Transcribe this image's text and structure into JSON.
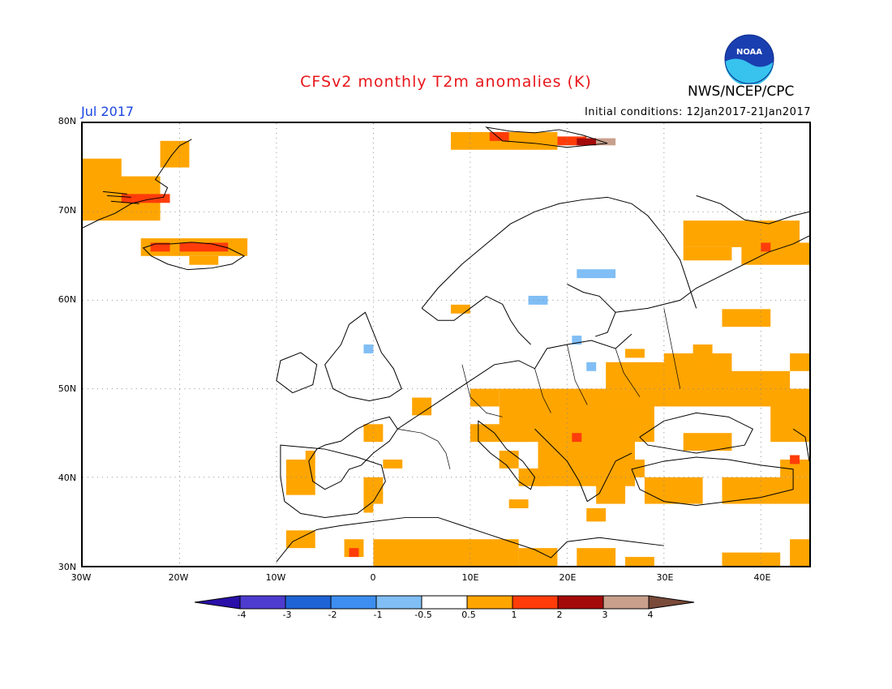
{
  "header": {
    "title": "CFSv2 monthly T2m anomalies (K)",
    "month": "Jul 2017",
    "initial_conditions": "Initial conditions: 12Jan2017-21Jan2017",
    "organization": "NWS/NCEP/CPC",
    "logo_text": "NOAA"
  },
  "axes": {
    "lat_labels": [
      "80N",
      "70N",
      "60N",
      "50N",
      "40N",
      "30N"
    ],
    "lon_labels": [
      "30W",
      "20W",
      "10W",
      "0",
      "10E",
      "20E",
      "30E",
      "40E"
    ]
  },
  "colorbar": {
    "labels": [
      "-4",
      "-3",
      "-2",
      "-1",
      "-0.5",
      "0.5",
      "1",
      "2",
      "3",
      "4"
    ],
    "colors": [
      "#2a0fa8",
      "#4d3ccf",
      "#1f64d6",
      "#3d8ef0",
      "#80bef5",
      "#ffffff",
      "#ffa500",
      "#ff3c0a",
      "#a50a0a",
      "#c8a08c",
      "#7a4a3a"
    ]
  },
  "map": {
    "bounds": {
      "lon_min": -30,
      "lon_max": 45,
      "lat_min": 30,
      "lat_max": 80
    },
    "anomaly_cells": [
      {
        "lon": [
          -30,
          -26
        ],
        "lat": [
          74,
          76
        ],
        "cat": "warm1"
      },
      {
        "lon": [
          -30,
          -22
        ],
        "lat": [
          69,
          74
        ],
        "cat": "warm1"
      },
      {
        "lon": [
          -26,
          -21
        ],
        "lat": [
          71,
          72
        ],
        "cat": "warm2"
      },
      {
        "lon": [
          -22,
          -19
        ],
        "lat": [
          75,
          78
        ],
        "cat": "warm1"
      },
      {
        "lon": [
          -24,
          -13
        ],
        "lat": [
          65,
          67
        ],
        "cat": "warm1"
      },
      {
        "lon": [
          -23,
          -21
        ],
        "lat": [
          65.5,
          66.5
        ],
        "cat": "warm2"
      },
      {
        "lon": [
          -20,
          -15
        ],
        "lat": [
          65.5,
          66.5
        ],
        "cat": "warm2"
      },
      {
        "lon": [
          -19,
          -16
        ],
        "lat": [
          64,
          65
        ],
        "cat": "warm1"
      },
      {
        "lon": [
          8,
          19
        ],
        "lat": [
          77,
          79
        ],
        "cat": "warm1"
      },
      {
        "lon": [
          12,
          14
        ],
        "lat": [
          78,
          79
        ],
        "cat": "warm2"
      },
      {
        "lon": [
          19,
          22
        ],
        "lat": [
          77.5,
          78.5
        ],
        "cat": "warm2"
      },
      {
        "lon": [
          21,
          23
        ],
        "lat": [
          77.5,
          78.3
        ],
        "cat": "warm3"
      },
      {
        "lon": [
          23,
          25
        ],
        "lat": [
          77.5,
          78.3
        ],
        "cat": "warm4"
      },
      {
        "lon": [
          32,
          44
        ],
        "lat": [
          66,
          69
        ],
        "cat": "warm1"
      },
      {
        "lon": [
          32,
          37
        ],
        "lat": [
          64.5,
          66
        ],
        "cat": "warm1"
      },
      {
        "lon": [
          38,
          45
        ],
        "lat": [
          64,
          66.5
        ],
        "cat": "warm1"
      },
      {
        "lon": [
          40,
          41
        ],
        "lat": [
          65.5,
          66.5
        ],
        "cat": "warm2"
      },
      {
        "lon": [
          36,
          41
        ],
        "lat": [
          57,
          59
        ],
        "cat": "warm1"
      },
      {
        "lon": [
          8,
          10
        ],
        "lat": [
          58.5,
          59.5
        ],
        "cat": "warm1"
      },
      {
        "lon": [
          13,
          29
        ],
        "lat": [
          44,
          50
        ],
        "cat": "warm1"
      },
      {
        "lon": [
          24,
          36
        ],
        "lat": [
          48,
          53
        ],
        "cat": "warm1"
      },
      {
        "lon": [
          30,
          37
        ],
        "lat": [
          49,
          54
        ],
        "cat": "warm1"
      },
      {
        "lon": [
          36,
          43
        ],
        "lat": [
          48,
          52
        ],
        "cat": "warm1"
      },
      {
        "lon": [
          41,
          45
        ],
        "lat": [
          44,
          50
        ],
        "cat": "warm1"
      },
      {
        "lon": [
          43,
          45
        ],
        "lat": [
          52,
          54
        ],
        "cat": "warm1"
      },
      {
        "lon": [
          10,
          13
        ],
        "lat": [
          48,
          50
        ],
        "cat": "warm1"
      },
      {
        "lon": [
          4,
          6
        ],
        "lat": [
          47,
          49
        ],
        "cat": "warm1"
      },
      {
        "lon": [
          -1,
          1
        ],
        "lat": [
          44,
          46
        ],
        "cat": "warm1"
      },
      {
        "lon": [
          10,
          16
        ],
        "lat": [
          44,
          46
        ],
        "cat": "warm1"
      },
      {
        "lon": [
          17,
          27
        ],
        "lat": [
          39,
          46
        ],
        "cat": "warm1"
      },
      {
        "lon": [
          20.5,
          21.5
        ],
        "lat": [
          44,
          45
        ],
        "cat": "warm2"
      },
      {
        "lon": [
          15,
          18
        ],
        "lat": [
          39,
          41
        ],
        "cat": "warm1"
      },
      {
        "lon": [
          13,
          15
        ],
        "lat": [
          41,
          43
        ],
        "cat": "warm1"
      },
      {
        "lon": [
          24,
          28
        ],
        "lat": [
          40,
          42
        ],
        "cat": "warm1"
      },
      {
        "lon": [
          23,
          26
        ],
        "lat": [
          37,
          40
        ],
        "cat": "warm1"
      },
      {
        "lon": [
          28,
          34
        ],
        "lat": [
          37,
          40
        ],
        "cat": "warm1"
      },
      {
        "lon": [
          32,
          37
        ],
        "lat": [
          43,
          45
        ],
        "cat": "warm1"
      },
      {
        "lon": [
          36,
          45
        ],
        "lat": [
          37,
          40
        ],
        "cat": "warm1"
      },
      {
        "lon": [
          42,
          45
        ],
        "lat": [
          40,
          42
        ],
        "cat": "warm1"
      },
      {
        "lon": [
          43,
          44
        ],
        "lat": [
          41.5,
          42.5
        ],
        "cat": "warm2"
      },
      {
        "lon": [
          22,
          24
        ],
        "lat": [
          35,
          36.5
        ],
        "cat": "warm1"
      },
      {
        "lon": [
          33,
          35
        ],
        "lat": [
          53,
          55
        ],
        "cat": "warm1"
      },
      {
        "lon": [
          26,
          28
        ],
        "lat": [
          53.5,
          54.5
        ],
        "cat": "warm1"
      },
      {
        "lon": [
          -9,
          -6
        ],
        "lat": [
          38,
          42
        ],
        "cat": "warm1"
      },
      {
        "lon": [
          -7,
          -6
        ],
        "lat": [
          42,
          43
        ],
        "cat": "warm1"
      },
      {
        "lon": [
          -1,
          1
        ],
        "lat": [
          37,
          40
        ],
        "cat": "warm1"
      },
      {
        "lon": [
          1,
          3
        ],
        "lat": [
          41,
          42
        ],
        "cat": "warm1"
      },
      {
        "lon": [
          -1,
          0
        ],
        "lat": [
          36,
          37
        ],
        "cat": "warm1"
      },
      {
        "lon": [
          14,
          16
        ],
        "lat": [
          36.5,
          37.5
        ],
        "cat": "warm1"
      },
      {
        "lon": [
          -9,
          -6
        ],
        "lat": [
          32,
          34
        ],
        "cat": "warm1"
      },
      {
        "lon": [
          -3,
          -1
        ],
        "lat": [
          31,
          33
        ],
        "cat": "warm1"
      },
      {
        "lon": [
          -2.5,
          -1.5
        ],
        "lat": [
          31,
          32
        ],
        "cat": "warm2"
      },
      {
        "lon": [
          0,
          15
        ],
        "lat": [
          30,
          33
        ],
        "cat": "warm1"
      },
      {
        "lon": [
          15,
          19
        ],
        "lat": [
          30,
          32
        ],
        "cat": "warm1"
      },
      {
        "lon": [
          21,
          25
        ],
        "lat": [
          30,
          32
        ],
        "cat": "warm1"
      },
      {
        "lon": [
          26,
          29
        ],
        "lat": [
          30,
          31
        ],
        "cat": "warm1"
      },
      {
        "lon": [
          36,
          42
        ],
        "lat": [
          30,
          31.5
        ],
        "cat": "warm1"
      },
      {
        "lon": [
          43,
          45
        ],
        "lat": [
          30,
          33
        ],
        "cat": "warm1"
      },
      {
        "lon": [
          21,
          25
        ],
        "lat": [
          62.5,
          63.5
        ],
        "cat": "cool1"
      },
      {
        "lon": [
          16,
          18
        ],
        "lat": [
          59.5,
          60.5
        ],
        "cat": "cool1"
      },
      {
        "lon": [
          -1,
          0
        ],
        "lat": [
          54,
          55
        ],
        "cat": "cool1"
      },
      {
        "lon": [
          20.5,
          21.5
        ],
        "lat": [
          55,
          56
        ],
        "cat": "cool1"
      },
      {
        "lon": [
          22,
          23
        ],
        "lat": [
          52,
          53
        ],
        "cat": "cool1"
      }
    ]
  }
}
